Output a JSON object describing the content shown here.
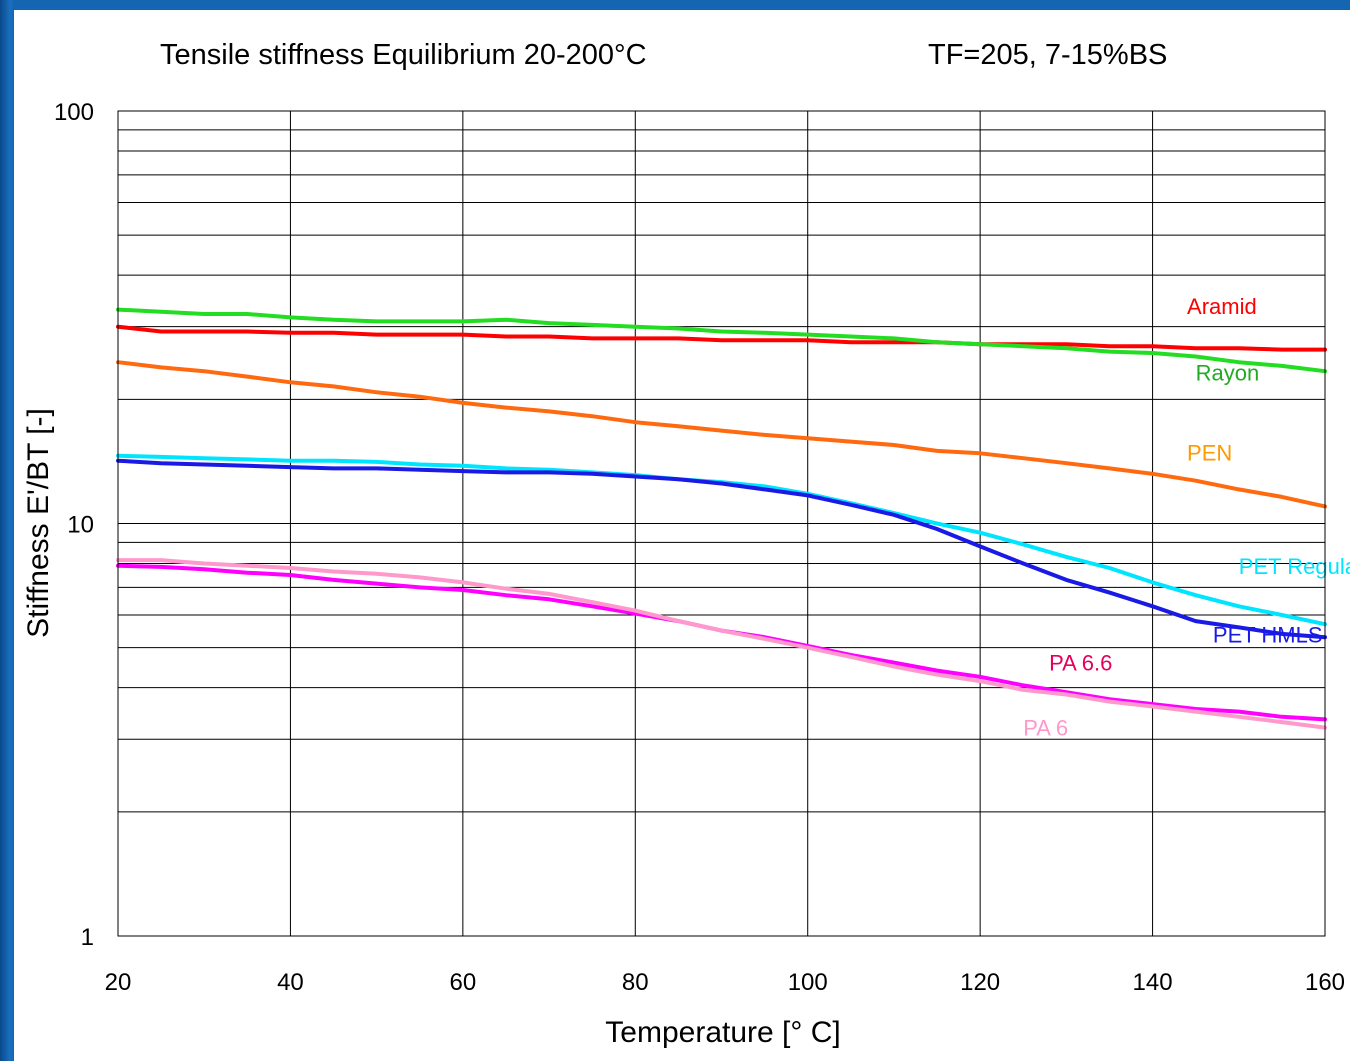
{
  "chart_data": {
    "type": "line",
    "title": "Tensile stiffness Equilibrium 20-200°C",
    "subtitle": "TF=205, 7-15%BS",
    "xlabel": "Temperature [° C]",
    "ylabel": "Stiffness E'/BT [-]",
    "xlim": [
      20,
      160
    ],
    "ylim": [
      1,
      100
    ],
    "yscale": "log",
    "grid": true,
    "x_ticks": [
      "20",
      "40",
      "60",
      "80",
      "100",
      "120",
      "140",
      "160"
    ],
    "y_ticks": [
      "1",
      "10",
      "100"
    ],
    "series": [
      {
        "name": "Aramid",
        "color": "#ff0000",
        "points": [
          [
            20,
            30.0
          ],
          [
            25,
            29.2
          ],
          [
            30,
            29.2
          ],
          [
            35,
            29.2
          ],
          [
            40,
            29.0
          ],
          [
            45,
            29.0
          ],
          [
            50,
            28.7
          ],
          [
            55,
            28.7
          ],
          [
            60,
            28.7
          ],
          [
            65,
            28.4
          ],
          [
            70,
            28.4
          ],
          [
            75,
            28.1
          ],
          [
            80,
            28.1
          ],
          [
            85,
            28.1
          ],
          [
            90,
            27.8
          ],
          [
            95,
            27.8
          ],
          [
            100,
            27.8
          ],
          [
            105,
            27.5
          ],
          [
            110,
            27.5
          ],
          [
            115,
            27.5
          ],
          [
            120,
            27.2
          ],
          [
            125,
            27.2
          ],
          [
            130,
            27.2
          ],
          [
            135,
            26.9
          ],
          [
            140,
            26.9
          ],
          [
            145,
            26.6
          ],
          [
            150,
            26.6
          ],
          [
            155,
            26.4
          ],
          [
            160,
            26.4
          ]
        ]
      },
      {
        "name": "Rayon",
        "color": "#22dd22",
        "points": [
          [
            20,
            33.0
          ],
          [
            25,
            32.6
          ],
          [
            30,
            32.2
          ],
          [
            35,
            32.2
          ],
          [
            40,
            31.6
          ],
          [
            45,
            31.2
          ],
          [
            50,
            30.9
          ],
          [
            55,
            30.9
          ],
          [
            60,
            30.9
          ],
          [
            65,
            31.2
          ],
          [
            70,
            30.6
          ],
          [
            75,
            30.3
          ],
          [
            80,
            30.0
          ],
          [
            85,
            29.7
          ],
          [
            90,
            29.2
          ],
          [
            95,
            29.0
          ],
          [
            100,
            28.7
          ],
          [
            105,
            28.4
          ],
          [
            110,
            28.1
          ],
          [
            115,
            27.5
          ],
          [
            120,
            27.2
          ],
          [
            125,
            26.9
          ],
          [
            130,
            26.6
          ],
          [
            135,
            26.1
          ],
          [
            140,
            25.9
          ],
          [
            145,
            25.4
          ],
          [
            150,
            24.6
          ],
          [
            155,
            24.1
          ],
          [
            160,
            23.4
          ]
        ]
      },
      {
        "name": "PEN",
        "color": "#ff6a10",
        "points": [
          [
            20,
            24.6
          ],
          [
            25,
            23.9
          ],
          [
            30,
            23.4
          ],
          [
            35,
            22.7
          ],
          [
            40,
            22.0
          ],
          [
            45,
            21.5
          ],
          [
            50,
            20.8
          ],
          [
            55,
            20.3
          ],
          [
            60,
            19.6
          ],
          [
            65,
            19.1
          ],
          [
            70,
            18.7
          ],
          [
            75,
            18.2
          ],
          [
            80,
            17.6
          ],
          [
            85,
            17.2
          ],
          [
            90,
            16.8
          ],
          [
            95,
            16.4
          ],
          [
            100,
            16.1
          ],
          [
            105,
            15.8
          ],
          [
            110,
            15.5
          ],
          [
            115,
            15.0
          ],
          [
            120,
            14.8
          ],
          [
            125,
            14.4
          ],
          [
            130,
            14.0
          ],
          [
            135,
            13.6
          ],
          [
            140,
            13.2
          ],
          [
            145,
            12.7
          ],
          [
            150,
            12.1
          ],
          [
            155,
            11.6
          ],
          [
            160,
            11.0
          ]
        ]
      },
      {
        "name": "PET Regular",
        "color": "#00e5ff",
        "points": [
          [
            20,
            14.6
          ],
          [
            25,
            14.5
          ],
          [
            30,
            14.4
          ],
          [
            35,
            14.3
          ],
          [
            40,
            14.2
          ],
          [
            45,
            14.2
          ],
          [
            50,
            14.1
          ],
          [
            55,
            13.9
          ],
          [
            60,
            13.8
          ],
          [
            65,
            13.6
          ],
          [
            70,
            13.5
          ],
          [
            75,
            13.3
          ],
          [
            80,
            13.1
          ],
          [
            85,
            12.8
          ],
          [
            90,
            12.6
          ],
          [
            95,
            12.3
          ],
          [
            100,
            11.8
          ],
          [
            105,
            11.2
          ],
          [
            110,
            10.6
          ],
          [
            115,
            10.0
          ],
          [
            120,
            9.5
          ],
          [
            125,
            8.9
          ],
          [
            130,
            8.3
          ],
          [
            135,
            7.8
          ],
          [
            140,
            7.2
          ],
          [
            145,
            6.7
          ],
          [
            150,
            6.3
          ],
          [
            155,
            6.0
          ],
          [
            160,
            5.7
          ]
        ]
      },
      {
        "name": "PET HMLS",
        "color": "#1a1ae6",
        "points": [
          [
            20,
            14.2
          ],
          [
            25,
            14.0
          ],
          [
            30,
            13.9
          ],
          [
            35,
            13.8
          ],
          [
            40,
            13.7
          ],
          [
            45,
            13.6
          ],
          [
            50,
            13.6
          ],
          [
            55,
            13.5
          ],
          [
            60,
            13.4
          ],
          [
            65,
            13.3
          ],
          [
            70,
            13.3
          ],
          [
            75,
            13.2
          ],
          [
            80,
            13.0
          ],
          [
            85,
            12.8
          ],
          [
            90,
            12.5
          ],
          [
            95,
            12.1
          ],
          [
            100,
            11.7
          ],
          [
            105,
            11.1
          ],
          [
            110,
            10.5
          ],
          [
            115,
            9.7
          ],
          [
            120,
            8.8
          ],
          [
            125,
            8.0
          ],
          [
            130,
            7.3
          ],
          [
            135,
            6.8
          ],
          [
            140,
            6.3
          ],
          [
            145,
            5.8
          ],
          [
            150,
            5.6
          ],
          [
            155,
            5.4
          ],
          [
            160,
            5.3
          ]
        ]
      },
      {
        "name": "PA 6.6",
        "color": "#ff00ff",
        "points": [
          [
            20,
            7.9
          ],
          [
            25,
            7.85
          ],
          [
            30,
            7.75
          ],
          [
            35,
            7.6
          ],
          [
            40,
            7.5
          ],
          [
            45,
            7.3
          ],
          [
            50,
            7.15
          ],
          [
            55,
            7.0
          ],
          [
            60,
            6.9
          ],
          [
            65,
            6.7
          ],
          [
            70,
            6.55
          ],
          [
            75,
            6.3
          ],
          [
            80,
            6.05
          ],
          [
            85,
            5.8
          ],
          [
            90,
            5.5
          ],
          [
            95,
            5.3
          ],
          [
            100,
            5.05
          ],
          [
            105,
            4.8
          ],
          [
            110,
            4.6
          ],
          [
            115,
            4.4
          ],
          [
            120,
            4.25
          ],
          [
            125,
            4.05
          ],
          [
            130,
            3.9
          ],
          [
            135,
            3.75
          ],
          [
            140,
            3.65
          ],
          [
            145,
            3.55
          ],
          [
            150,
            3.5
          ],
          [
            155,
            3.4
          ],
          [
            160,
            3.35
          ]
        ]
      },
      {
        "name": "PA 6",
        "color": "#ff99cc",
        "points": [
          [
            20,
            8.15
          ],
          [
            25,
            8.15
          ],
          [
            30,
            8.0
          ],
          [
            35,
            7.9
          ],
          [
            40,
            7.8
          ],
          [
            45,
            7.65
          ],
          [
            50,
            7.55
          ],
          [
            55,
            7.4
          ],
          [
            60,
            7.2
          ],
          [
            65,
            6.95
          ],
          [
            70,
            6.75
          ],
          [
            75,
            6.45
          ],
          [
            80,
            6.15
          ],
          [
            85,
            5.8
          ],
          [
            90,
            5.5
          ],
          [
            95,
            5.25
          ],
          [
            100,
            5.0
          ],
          [
            105,
            4.75
          ],
          [
            110,
            4.5
          ],
          [
            115,
            4.3
          ],
          [
            120,
            4.15
          ],
          [
            125,
            3.95
          ],
          [
            130,
            3.85
          ],
          [
            135,
            3.7
          ],
          [
            140,
            3.6
          ],
          [
            145,
            3.5
          ],
          [
            150,
            3.4
          ],
          [
            155,
            3.3
          ],
          [
            160,
            3.2
          ]
        ]
      }
    ],
    "annotations": [
      {
        "text": "Aramid",
        "x": 144,
        "y": 32.2,
        "color": "#ff0000"
      },
      {
        "text": "Rayon",
        "x": 145,
        "y": 22.2,
        "color": "#22aa22"
      },
      {
        "text": "PEN",
        "x": 144,
        "y": 14.2,
        "color": "#ff9900"
      },
      {
        "text": "PET Regular",
        "x": 150,
        "y": 7.55,
        "color": "#00e5ff"
      },
      {
        "text": "PET HMLS",
        "x": 147,
        "y": 5.15,
        "color": "#1a1ae6"
      },
      {
        "text": "PA 6.6",
        "x": 128,
        "y": 4.4,
        "color": "#e6005c"
      },
      {
        "text": "PA 6",
        "x": 125,
        "y": 3.06,
        "color": "#ff99cc"
      }
    ]
  }
}
